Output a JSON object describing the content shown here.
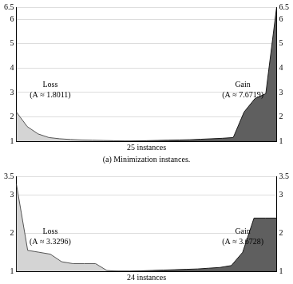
{
  "chart_data": [
    {
      "type": "line",
      "title": "(a) Minimization instances.",
      "x_label": "25 instances",
      "x": [
        1,
        2,
        3,
        4,
        5,
        6,
        7,
        8,
        9,
        10,
        11,
        12,
        13,
        14,
        15,
        16,
        17,
        18,
        19,
        20,
        21,
        22,
        23,
        24,
        25
      ],
      "xlim": [
        1,
        25
      ],
      "series": [
        {
          "name": "Loss",
          "color": "#d4d4d4",
          "values": [
            2.2,
            1.6,
            1.3,
            1.15,
            1.1,
            1.07,
            1.05,
            1.04,
            1.03,
            1.02,
            1.01,
            1,
            1,
            1,
            1,
            1,
            1,
            1,
            1,
            1,
            1,
            1,
            1,
            1,
            1
          ]
        },
        {
          "name": "Gain",
          "color": "#5f5f5f",
          "values": [
            1,
            1,
            1,
            1,
            1,
            1,
            1,
            1,
            1,
            1,
            1,
            1.01,
            1.02,
            1.03,
            1.04,
            1.05,
            1.06,
            1.08,
            1.1,
            1.12,
            1.15,
            2.2,
            2.75,
            2.95,
            6.5
          ]
        }
      ],
      "annotations": [
        [
          "Loss",
          "(A ≈ 1.8011)"
        ],
        [
          "Gain",
          "(A ≈ 7.6719)"
        ]
      ],
      "ylim": [
        1,
        6.5
      ],
      "yticks": [
        1,
        2,
        3,
        4,
        5,
        6,
        6.5
      ],
      "y2lim": [
        1,
        6.5
      ],
      "y2ticks": [
        1,
        2,
        3,
        4,
        5,
        6,
        6.5
      ],
      "grid": true,
      "tick_labels": "y"
    },
    {
      "type": "line",
      "x_label": "24 instances",
      "x": [
        1,
        2,
        3,
        4,
        5,
        6,
        7,
        8,
        9,
        10,
        11,
        12,
        13,
        14,
        15,
        16,
        17,
        18,
        19,
        20,
        21,
        22,
        23,
        24
      ],
      "xlim": [
        1,
        24
      ],
      "series": [
        {
          "name": "Loss",
          "color": "#d4d4d4",
          "values": [
            3.3,
            1.55,
            1.5,
            1.45,
            1.25,
            1.2,
            1.2,
            1.2,
            1.02,
            1,
            1,
            1,
            1,
            1,
            1,
            1,
            1,
            1,
            1,
            1,
            1,
            1,
            1,
            1
          ]
        },
        {
          "name": "Gain",
          "color": "#5f5f5f",
          "values": [
            1,
            1,
            1,
            1,
            1,
            1,
            1,
            1,
            1,
            1,
            1,
            1.01,
            1.02,
            1.03,
            1.04,
            1.05,
            1.06,
            1.08,
            1.1,
            1.15,
            1.5,
            2.4,
            2.4,
            2.4
          ]
        }
      ],
      "annotations": [
        [
          "Loss",
          "(A ≈ 3.3296)"
        ],
        [
          "Gain",
          "(A ≈ 3.6728)"
        ]
      ],
      "ylim": [
        1,
        3.5
      ],
      "yticks": [
        1,
        2,
        3,
        3.5
      ],
      "y2lim": [
        1,
        3.5
      ],
      "y2ticks": [
        1,
        2,
        3,
        3.5
      ],
      "grid": true,
      "tick_labels": "y"
    }
  ]
}
